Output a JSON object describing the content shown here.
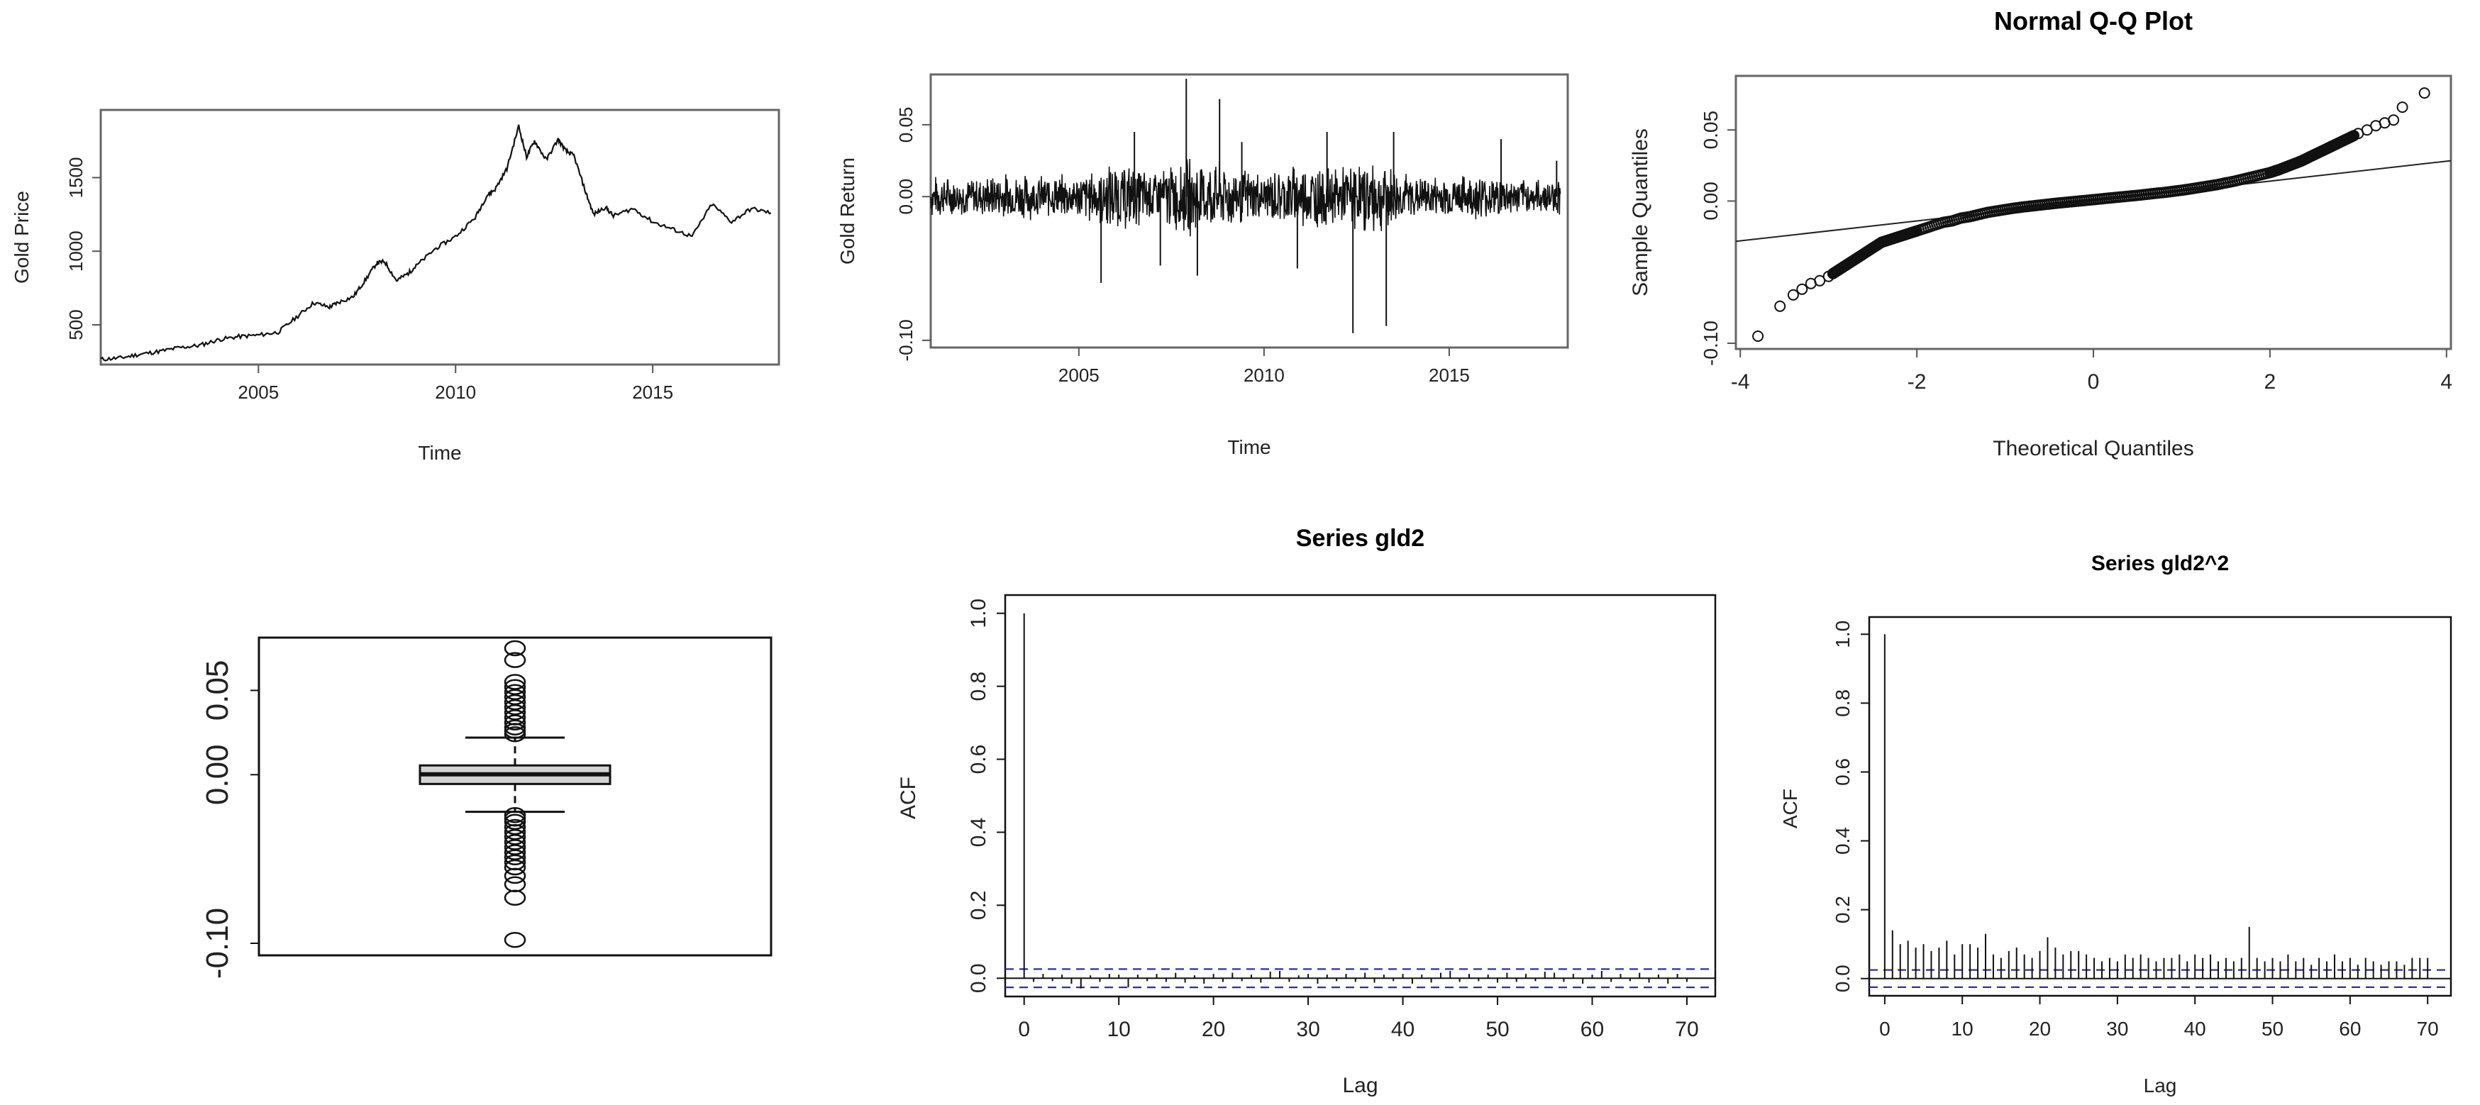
{
  "chart_data": [
    {
      "type": "line",
      "title": "",
      "xlabel": "Time",
      "ylabel": "Gold Price",
      "xlim": [
        2001,
        2018.2
      ],
      "ylim": [
        230,
        1960
      ],
      "x_ticks": [
        "2005",
        "2010",
        "2015"
      ],
      "y_ticks": [
        "500",
        "1000",
        "1500"
      ],
      "series": [
        {
          "x": [
            2001.0,
            2001.5,
            2002.0,
            2002.5,
            2003.0,
            2003.5,
            2004.0,
            2004.5,
            2005.0,
            2005.5,
            2006.0,
            2006.4,
            2006.8,
            2007.0,
            2007.4,
            2007.7,
            2008.0,
            2008.2,
            2008.5,
            2008.8,
            2009.0,
            2009.5,
            2010.0,
            2010.5,
            2010.8,
            2011.0,
            2011.3,
            2011.6,
            2011.8,
            2012.0,
            2012.3,
            2012.6,
            2012.8,
            2013.0,
            2013.3,
            2013.5,
            2013.8,
            2014.0,
            2014.5,
            2015.0,
            2015.5,
            2016.0,
            2016.5,
            2017.0,
            2017.5,
            2018.0
          ],
          "y": [
            265,
            275,
            300,
            320,
            345,
            360,
            400,
            420,
            430,
            450,
            560,
            650,
            620,
            650,
            690,
            800,
            920,
            930,
            800,
            850,
            900,
            1020,
            1100,
            1230,
            1380,
            1420,
            1560,
            1850,
            1640,
            1750,
            1620,
            1760,
            1680,
            1650,
            1400,
            1250,
            1300,
            1240,
            1290,
            1200,
            1150,
            1100,
            1320,
            1200,
            1290,
            1260
          ]
        }
      ]
    },
    {
      "type": "line",
      "title": "",
      "xlabel": "Time",
      "ylabel": "Gold Return",
      "xlim": [
        2001,
        2018.2
      ],
      "ylim": [
        -0.105,
        0.085
      ],
      "x_ticks": [
        "2005",
        "2010",
        "2015"
      ],
      "y_ticks": [
        "-0.10",
        "0.00",
        "0.05"
      ],
      "envelope": {
        "x": [
          2001,
          2002,
          2003,
          2004,
          2005,
          2006,
          2007,
          2008,
          2009,
          2010,
          2011,
          2012,
          2013,
          2014,
          2015,
          2016,
          2017,
          2018
        ],
        "amplitude": [
          0.016,
          0.014,
          0.018,
          0.016,
          0.017,
          0.026,
          0.02,
          0.03,
          0.024,
          0.018,
          0.026,
          0.022,
          0.028,
          0.016,
          0.015,
          0.018,
          0.012,
          0.014
        ]
      },
      "spikes": [
        {
          "x": 2005.6,
          "y": -0.06
        },
        {
          "x": 2006.5,
          "y": 0.045
        },
        {
          "x": 2007.2,
          "y": -0.048
        },
        {
          "x": 2007.9,
          "y": 0.082
        },
        {
          "x": 2008.2,
          "y": -0.055
        },
        {
          "x": 2008.8,
          "y": 0.068
        },
        {
          "x": 2009.4,
          "y": 0.038
        },
        {
          "x": 2010.9,
          "y": -0.05
        },
        {
          "x": 2011.7,
          "y": 0.045
        },
        {
          "x": 2012.4,
          "y": -0.095
        },
        {
          "x": 2013.3,
          "y": -0.09
        },
        {
          "x": 2013.5,
          "y": 0.045
        },
        {
          "x": 2016.4,
          "y": 0.04
        },
        {
          "x": 2017.9,
          "y": 0.025
        }
      ]
    },
    {
      "type": "scatter",
      "title": "Normal Q-Q Plot",
      "xlabel": "Theoretical Quantiles",
      "ylabel": "Sample Quantiles",
      "xlim": [
        -4,
        4
      ],
      "ylim": [
        -0.1,
        0.085
      ],
      "x_ticks": [
        "-4",
        "-2",
        "0",
        "2",
        "4"
      ],
      "y_ticks": [
        "-0.10",
        "0.00",
        "0.05"
      ],
      "reference_line": {
        "x": [
          -4,
          4
        ],
        "y": [
          -0.028,
          0.028
        ]
      },
      "points": {
        "x": [
          -3.8,
          -3.55,
          -3.4,
          -3.3,
          -3.2,
          -3.1,
          -3.0,
          -2.95,
          -2.9,
          -2.85,
          -2.8,
          -2.75,
          -2.7,
          -2.65,
          -2.6,
          -2.55,
          -2.5,
          -2.45,
          -2.4,
          -2.35,
          -2.3,
          -2.25,
          -2.2,
          -2.15,
          -2.1,
          -2.05,
          -2.0,
          -1.9,
          -1.8,
          -1.7,
          -1.6,
          -1.5,
          -1.4,
          -1.3,
          -1.2,
          -1.1,
          -1.0,
          -0.9,
          -0.8,
          -0.7,
          -0.6,
          -0.5,
          -0.4,
          -0.3,
          -0.2,
          -0.1,
          0.0,
          0.1,
          0.2,
          0.3,
          0.4,
          0.5,
          0.6,
          0.7,
          0.8,
          0.9,
          1.0,
          1.1,
          1.2,
          1.3,
          1.4,
          1.5,
          1.6,
          1.7,
          1.8,
          1.9,
          2.0,
          2.05,
          2.1,
          2.15,
          2.2,
          2.25,
          2.3,
          2.35,
          2.4,
          2.45,
          2.5,
          2.55,
          2.6,
          2.65,
          2.7,
          2.75,
          2.8,
          2.85,
          2.9,
          2.95,
          3.0,
          3.1,
          3.2,
          3.3,
          3.4,
          3.5,
          3.75
        ],
        "y": [
          -0.095,
          -0.074,
          -0.066,
          -0.062,
          -0.058,
          -0.056,
          -0.053,
          -0.051,
          -0.049,
          -0.047,
          -0.045,
          -0.043,
          -0.041,
          -0.039,
          -0.037,
          -0.035,
          -0.033,
          -0.031,
          -0.029,
          -0.028,
          -0.027,
          -0.026,
          -0.025,
          -0.024,
          -0.023,
          -0.022,
          -0.021,
          -0.019,
          -0.017,
          -0.015,
          -0.014,
          -0.012,
          -0.011,
          -0.0095,
          -0.008,
          -0.007,
          -0.006,
          -0.005,
          -0.0042,
          -0.0035,
          -0.0028,
          -0.0021,
          -0.0014,
          -0.0008,
          -0.0002,
          0.0004,
          0.001,
          0.0016,
          0.0022,
          0.0028,
          0.0034,
          0.004,
          0.0047,
          0.0054,
          0.006,
          0.0068,
          0.0076,
          0.0085,
          0.0095,
          0.0105,
          0.0115,
          0.0128,
          0.014,
          0.0155,
          0.017,
          0.0185,
          0.02,
          0.021,
          0.022,
          0.0232,
          0.0244,
          0.0256,
          0.0268,
          0.028,
          0.0295,
          0.031,
          0.0325,
          0.034,
          0.0355,
          0.037,
          0.0385,
          0.04,
          0.0415,
          0.043,
          0.0445,
          0.046,
          0.0475,
          0.05,
          0.053,
          0.055,
          0.057,
          0.066,
          0.076
        ]
      }
    },
    {
      "type": "boxplot",
      "title": "",
      "ylim": [
        -0.105,
        0.085
      ],
      "y_ticks": [
        "-0.10",
        "0.00",
        "0.05"
      ],
      "box": {
        "q1": -0.0055,
        "median": 0.0002,
        "q3": 0.0055,
        "whisker_low": -0.022,
        "whisker_high": 0.022
      },
      "outliers": [
        0.075,
        0.068,
        0.055,
        0.052,
        0.049,
        0.046,
        0.043,
        0.04,
        0.037,
        0.034,
        0.031,
        0.028,
        0.026,
        0.024,
        -0.024,
        -0.026,
        -0.028,
        -0.031,
        -0.034,
        -0.037,
        -0.04,
        -0.043,
        -0.046,
        -0.049,
        -0.052,
        -0.055,
        -0.06,
        -0.065,
        -0.073,
        -0.098
      ]
    },
    {
      "type": "bar",
      "title": "Series  gld2",
      "xlabel": "Lag",
      "ylabel": "ACF",
      "xlim": [
        0,
        72
      ],
      "ylim": [
        -0.05,
        1.05
      ],
      "x_ticks": [
        "0",
        "10",
        "20",
        "30",
        "40",
        "50",
        "60",
        "70"
      ],
      "y_ticks": [
        "0.0",
        "0.2",
        "0.4",
        "0.6",
        "0.8",
        "1.0"
      ],
      "confidence_bounds": [
        0.025,
        -0.025
      ],
      "lags": [
        0,
        1,
        2,
        3,
        4,
        5,
        6,
        7,
        8,
        9,
        10,
        11,
        12,
        13,
        14,
        15,
        16,
        17,
        18,
        19,
        20,
        21,
        22,
        23,
        24,
        25,
        26,
        27,
        28,
        29,
        30,
        31,
        32,
        33,
        34,
        35,
        36,
        37,
        38,
        39,
        40,
        41,
        42,
        43,
        44,
        45,
        46,
        47,
        48,
        49,
        50,
        51,
        52,
        53,
        54,
        55,
        56,
        57,
        58,
        59,
        60,
        61,
        62,
        63,
        64,
        65,
        66,
        67,
        68,
        69,
        70
      ],
      "acf": [
        1.0,
        -0.01,
        0.012,
        -0.008,
        0.01,
        -0.015,
        -0.028,
        0.008,
        -0.01,
        0.012,
        0.01,
        -0.025,
        0.01,
        -0.008,
        0.012,
        -0.01,
        0.015,
        -0.012,
        0.008,
        -0.015,
        0.012,
        -0.01,
        0.015,
        -0.008,
        0.01,
        -0.012,
        0.018,
        0.02,
        -0.01,
        0.008,
        0.012,
        -0.015,
        0.01,
        -0.008,
        0.012,
        -0.01,
        0.015,
        -0.012,
        0.01,
        -0.008,
        0.012,
        -0.015,
        0.01,
        -0.012,
        0.015,
        0.02,
        -0.01,
        0.012,
        -0.008,
        0.01,
        -0.012,
        0.015,
        -0.01,
        0.012,
        -0.008,
        0.018,
        0.015,
        -0.01,
        0.012,
        -0.015,
        0.01,
        0.02,
        -0.01,
        0.012,
        -0.008,
        0.015,
        -0.012,
        0.01,
        -0.015,
        0.012,
        -0.01
      ]
    },
    {
      "type": "bar",
      "title": "Series  gld2^2",
      "xlabel": "Lag",
      "ylabel": "ACF",
      "xlim": [
        0,
        72
      ],
      "ylim": [
        -0.05,
        1.05
      ],
      "x_ticks": [
        "0",
        "10",
        "20",
        "30",
        "40",
        "50",
        "60",
        "70"
      ],
      "y_ticks": [
        "0.0",
        "0.2",
        "0.4",
        "0.6",
        "0.8",
        "1.0"
      ],
      "confidence_bounds": [
        0.025,
        -0.025
      ],
      "lags": [
        0,
        1,
        2,
        3,
        4,
        5,
        6,
        7,
        8,
        9,
        10,
        11,
        12,
        13,
        14,
        15,
        16,
        17,
        18,
        19,
        20,
        21,
        22,
        23,
        24,
        25,
        26,
        27,
        28,
        29,
        30,
        31,
        32,
        33,
        34,
        35,
        36,
        37,
        38,
        39,
        40,
        41,
        42,
        43,
        44,
        45,
        46,
        47,
        48,
        49,
        50,
        51,
        52,
        53,
        54,
        55,
        56,
        57,
        58,
        59,
        60,
        61,
        62,
        63,
        64,
        65,
        66,
        67,
        68,
        69,
        70
      ],
      "acf": [
        1.0,
        0.14,
        0.1,
        0.11,
        0.09,
        0.1,
        0.08,
        0.09,
        0.11,
        0.07,
        0.1,
        0.1,
        0.09,
        0.13,
        0.07,
        0.06,
        0.08,
        0.09,
        0.07,
        0.06,
        0.08,
        0.12,
        0.09,
        0.07,
        0.08,
        0.08,
        0.07,
        0.06,
        0.05,
        0.06,
        0.05,
        0.07,
        0.06,
        0.07,
        0.06,
        0.05,
        0.06,
        0.06,
        0.07,
        0.05,
        0.07,
        0.06,
        0.07,
        0.05,
        0.06,
        0.05,
        0.06,
        0.15,
        0.06,
        0.05,
        0.06,
        0.05,
        0.07,
        0.05,
        0.06,
        0.04,
        0.06,
        0.05,
        0.07,
        0.05,
        0.06,
        0.04,
        0.06,
        0.05,
        0.04,
        0.05,
        0.05,
        0.04,
        0.06,
        0.06,
        0.06
      ]
    }
  ]
}
